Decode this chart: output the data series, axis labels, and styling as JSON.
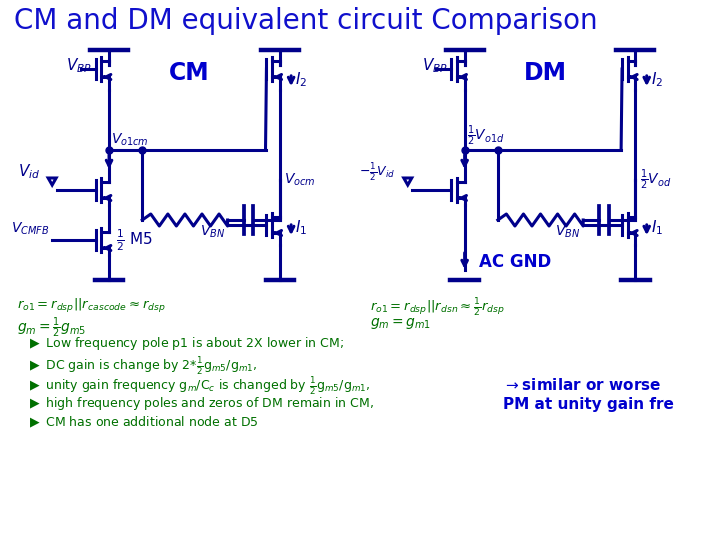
{
  "title": "CM and DM equivalent circuit Comparison",
  "title_color": "#1010CC",
  "title_fontsize": 20,
  "circuit_color": "#00008B",
  "green_color": "#007000",
  "blue_label_color": "#0000CD",
  "bg_color": "#FFFFFF",
  "bullet_lines": [
    "Low frequency pole p1 is about 2X lower in CM;",
    "DC gain is change by 2*½g_{m5}/g_{m1,}",
    "unity gain frequency g_m/C_c is changed by ½g_{m5}/g_{m1,}",
    "high frequency poles and zeros of DM remain in CM,",
    "CM has one additional node at D5"
  ],
  "right_text_line1": "→similar or worse",
  "right_text_line2": "PM at unity gain fre"
}
